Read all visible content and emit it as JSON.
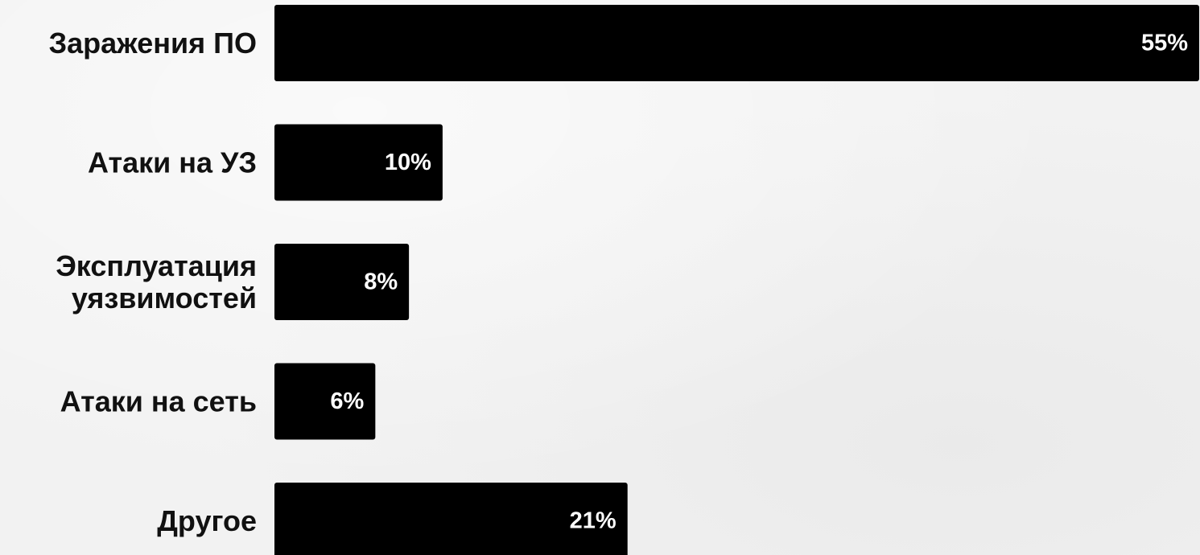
{
  "chart_data": {
    "type": "bar",
    "orientation": "horizontal",
    "categories": [
      [
        "Заражения ПО"
      ],
      [
        "Атаки на УЗ"
      ],
      [
        "Эксплуатация",
        "уязвимостей"
      ],
      [
        "Атаки на сеть"
      ],
      [
        "Другое"
      ]
    ],
    "values": [
      55,
      10,
      8,
      6,
      21
    ],
    "value_labels": [
      "55%",
      "10%",
      "8%",
      "6%",
      "21%"
    ],
    "xlim": [
      0,
      55
    ],
    "grid": false,
    "legend": "none",
    "colors": {
      "bar": "#000000",
      "value_text": "#ffffff",
      "category_text": "#111111",
      "background": "#f2f2f2"
    }
  }
}
